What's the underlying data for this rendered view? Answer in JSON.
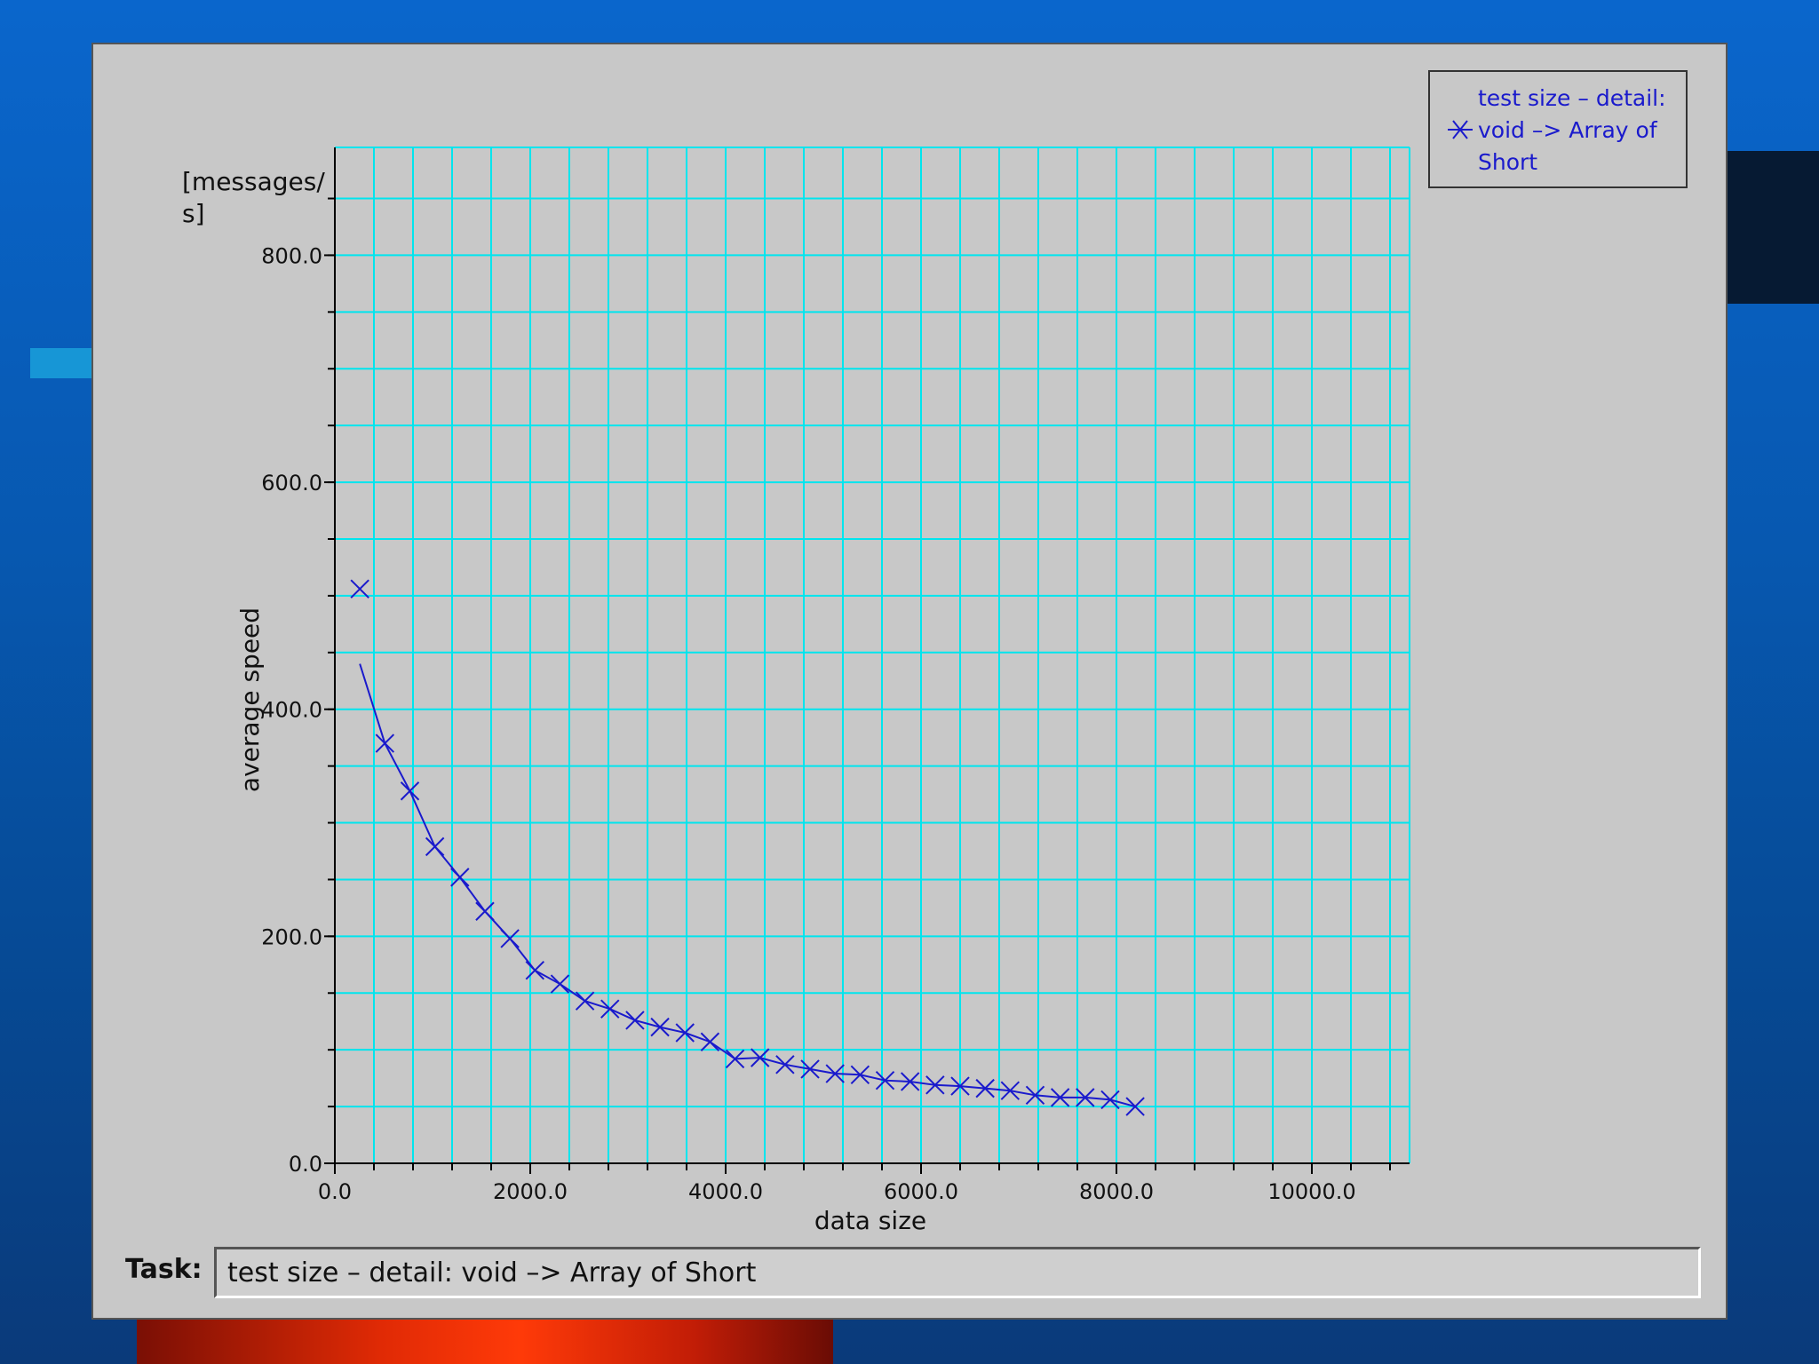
{
  "colors": {
    "background": "#0a66cc",
    "panel": "#c8c8c8",
    "grid": "#00e5ee",
    "series": "#1a1acc"
  },
  "legend": {
    "text": "test size – detail: void –> Array of Short",
    "marker_icon": "x-marker-icon"
  },
  "task": {
    "label": "Task:",
    "value": "test size – detail: void –> Array of Short"
  },
  "chart_data": {
    "type": "line",
    "xlabel": "data size",
    "ylabel": "average speed",
    "yunit": "[messages/ s]",
    "xlim": [
      0,
      11000
    ],
    "ylim": [
      0,
      895
    ],
    "xticks": [
      "0.0",
      "2000.0",
      "4000.0",
      "6000.0",
      "8000.0",
      "10000.0"
    ],
    "yticks": [
      "0.0",
      "200.0",
      "400.0",
      "600.0",
      "800.0"
    ],
    "grid": true,
    "legend_position": "top-right",
    "outlier": {
      "x": 256,
      "y": 506
    },
    "series": [
      {
        "name": "test size – detail: void –> Array of Short",
        "x": [
          256,
          512,
          768,
          1024,
          1280,
          1536,
          1792,
          2048,
          2304,
          2560,
          2816,
          3072,
          3328,
          3584,
          3840,
          4096,
          4352,
          4608,
          4864,
          5120,
          5376,
          5632,
          5888,
          6144,
          6400,
          6656,
          6912,
          7168,
          7424,
          7680,
          7936,
          8192
        ],
        "y": [
          440,
          370,
          328,
          279,
          252,
          222,
          198,
          170,
          158,
          143,
          136,
          126,
          120,
          115,
          107,
          92,
          93,
          87,
          83,
          79,
          78,
          73,
          72,
          69,
          68,
          66,
          64,
          60,
          58,
          58,
          56,
          50
        ]
      }
    ]
  }
}
